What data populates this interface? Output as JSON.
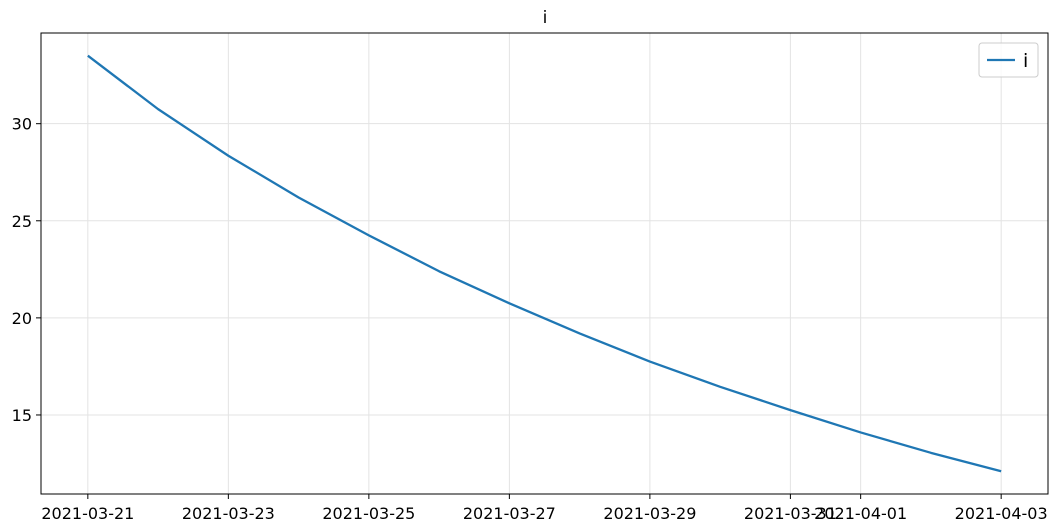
{
  "chart_data": {
    "type": "line",
    "title": "i",
    "xlabel": "",
    "ylabel": "",
    "x": [
      "2021-03-21",
      "2021-03-22",
      "2021-03-23",
      "2021-03-24",
      "2021-03-25",
      "2021-03-26",
      "2021-03-27",
      "2021-03-28",
      "2021-03-29",
      "2021-03-30",
      "2021-03-31",
      "2021-04-01",
      "2021-04-02",
      "2021-04-03"
    ],
    "series": [
      {
        "name": "i",
        "color": "#1f77b4",
        "values": [
          33.5,
          30.75,
          28.35,
          26.2,
          24.25,
          22.4,
          20.75,
          19.2,
          17.75,
          16.45,
          15.25,
          14.1,
          13.05,
          12.1
        ]
      }
    ],
    "xticks": [
      "2021-03-21",
      "2021-03-23",
      "2021-03-25",
      "2021-03-27",
      "2021-03-29",
      "2021-03-31",
      "2021-04-01",
      "2021-04-03"
    ],
    "yticks": [
      15,
      20,
      25,
      30
    ],
    "ylim": [
      10.93,
      34.67
    ],
    "xlim": [
      "2021-03-20 08:00",
      "2021-04-03 16:00"
    ],
    "grid": true,
    "legend": {
      "position": "top-right",
      "entries": [
        "i"
      ]
    }
  }
}
